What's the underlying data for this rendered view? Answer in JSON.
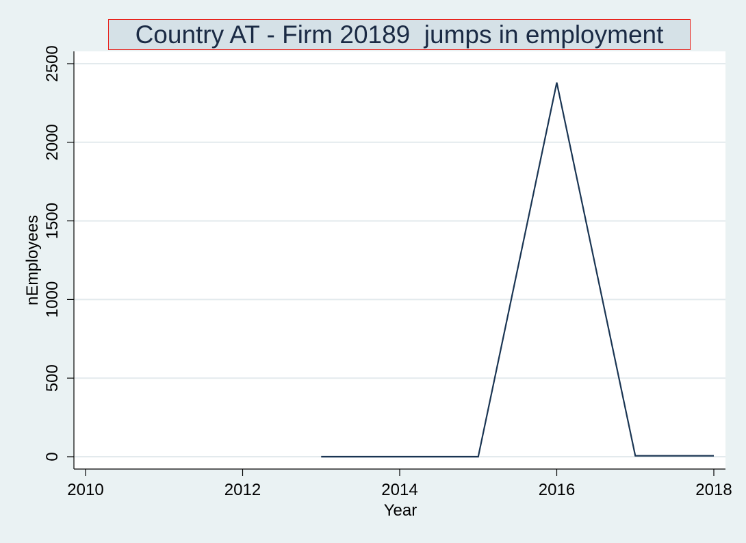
{
  "chart_data": {
    "type": "line",
    "title": "Country AT - Firm 20189  jumps in employment",
    "xlabel": "Year",
    "ylabel": "nEmployees",
    "xlim": [
      2010,
      2018
    ],
    "ylim": [
      0,
      2500
    ],
    "xticks": [
      2010,
      2012,
      2014,
      2016,
      2018
    ],
    "yticks": [
      0,
      500,
      1000,
      1500,
      2000,
      2500
    ],
    "grid": true,
    "series": [
      {
        "x": [
          2013,
          2014,
          2015,
          2016,
          2017,
          2018
        ],
        "y": [
          0,
          0,
          0,
          2380,
          6,
          6
        ]
      }
    ],
    "colors": {
      "line": "#1a3553",
      "background": "#eaf2f3",
      "plot_bg": "#ffffff",
      "grid": "#e3eaed",
      "title_border": "#e8221b",
      "title_bg": "#d5e1e7"
    }
  }
}
